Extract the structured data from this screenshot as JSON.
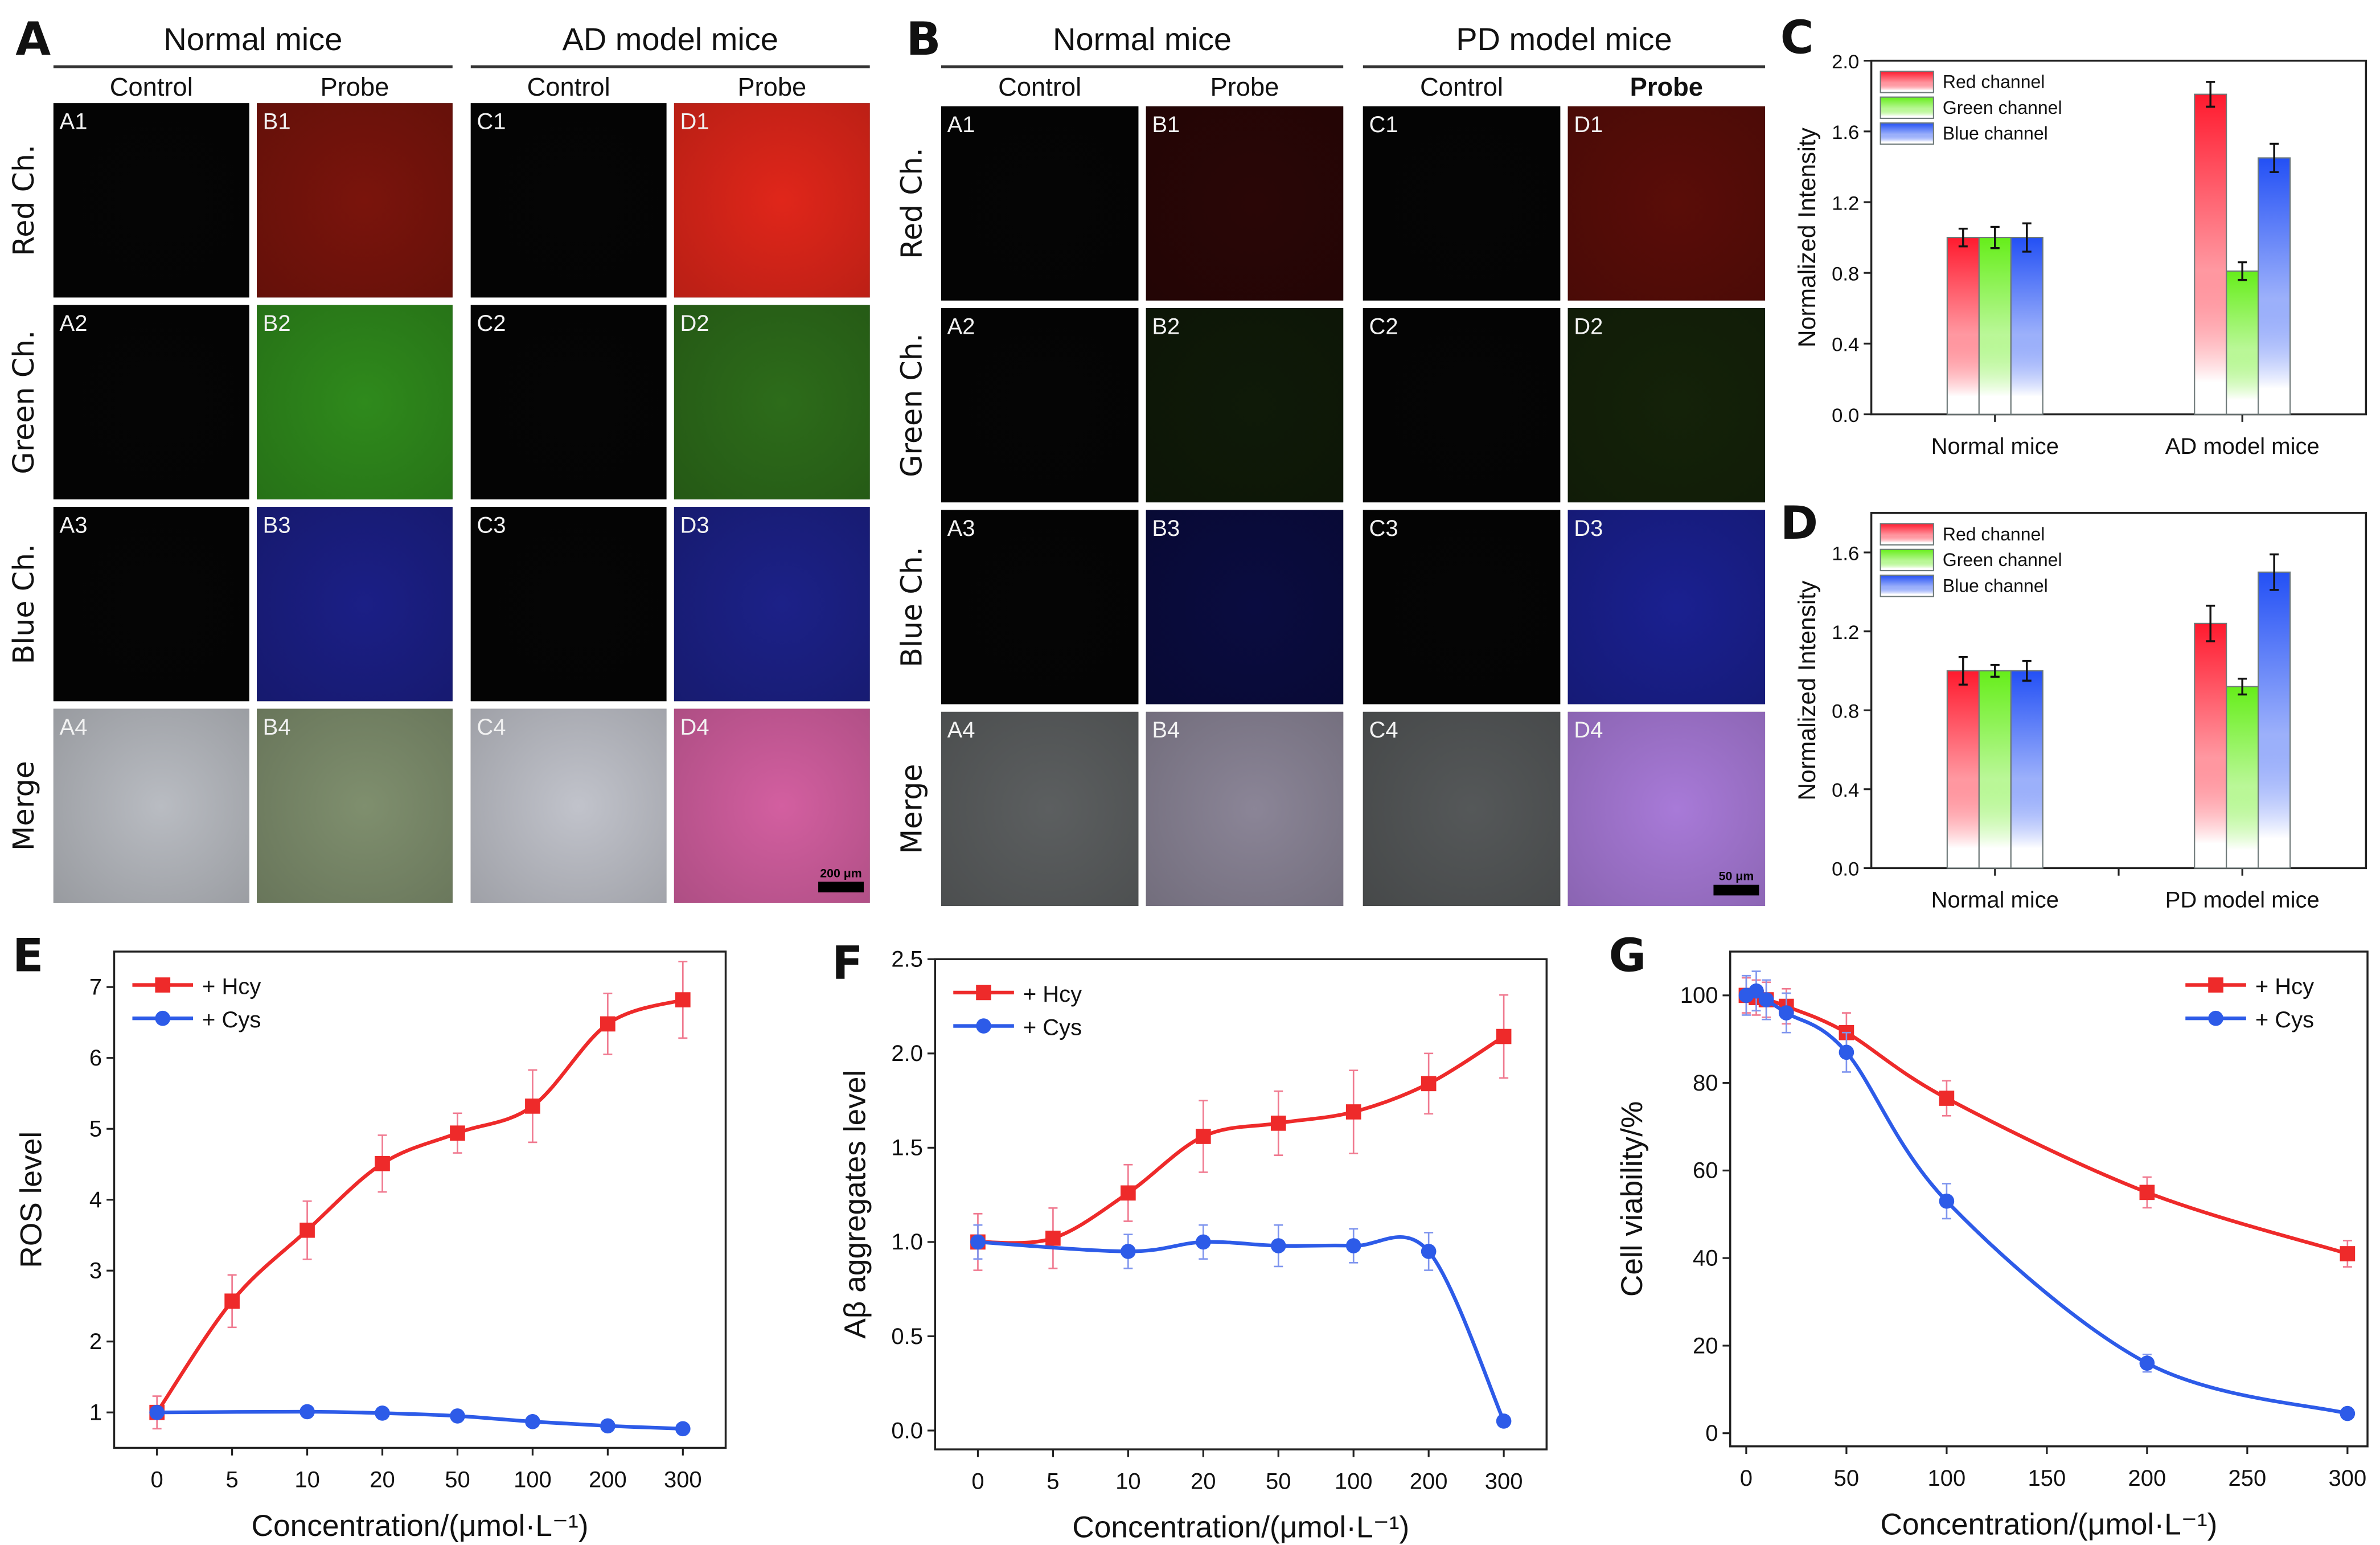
{
  "figure": {
    "panels": {
      "A": {
        "letter": "A",
        "groups": [
          "Normal mice",
          "AD model mice"
        ],
        "columns": [
          "Control",
          "Probe",
          "Control",
          "Probe"
        ],
        "rows": [
          "Red Ch.",
          "Green Ch.",
          "Blue Ch.",
          "Merge"
        ],
        "cell_ids": [
          [
            "A1",
            "B1",
            "C1",
            "D1"
          ],
          [
            "A2",
            "B2",
            "C2",
            "D2"
          ],
          [
            "A3",
            "B3",
            "C3",
            "D3"
          ],
          [
            "A4",
            "B4",
            "C4",
            "D4"
          ]
        ],
        "scale_bar": "200 μm",
        "cell_colors": [
          [
            "#050505",
            "#7a140c",
            "#050505",
            "#e0261a"
          ],
          [
            "#050505",
            "#2f8a1c",
            "#050505",
            "#2d6c1a"
          ],
          [
            "#050505",
            "#1b1f86",
            "#050505",
            "#1c2188"
          ],
          [
            "#b9bcc2",
            "#7f8f6e",
            "#c1c3cb",
            "#d35fa0"
          ]
        ]
      },
      "B": {
        "letter": "B",
        "groups": [
          "Normal mice",
          "PD model mice"
        ],
        "columns": [
          "Control",
          "Probe",
          "Control",
          "Probe"
        ],
        "rows": [
          "Red Ch.",
          "Green Ch.",
          "Blue Ch.",
          "Merge"
        ],
        "cell_ids": [
          [
            "A1",
            "B1",
            "C1",
            "D1"
          ],
          [
            "A2",
            "B2",
            "C2",
            "D2"
          ],
          [
            "A3",
            "B3",
            "C3",
            "D3"
          ],
          [
            "A4",
            "B4",
            "C4",
            "D4"
          ]
        ],
        "scale_bar": "50 μm",
        "cell_colors": [
          [
            "#050505",
            "#2a0606",
            "#050505",
            "#5a0d08"
          ],
          [
            "#050505",
            "#0f1a08",
            "#050505",
            "#142209"
          ],
          [
            "#050505",
            "#0a0c40",
            "#050505",
            "#1a2090"
          ],
          [
            "#5c5f60",
            "#8b8597",
            "#555859",
            "#a87ad8"
          ]
        ]
      }
    }
  },
  "chart_data": [
    {
      "id": "C",
      "letter": "C",
      "type": "bar",
      "title": "",
      "categories": [
        "Normal mice",
        "AD model mice"
      ],
      "series": [
        {
          "name": "Red channel",
          "color": "#ff1a2e",
          "values": [
            1.0,
            1.81
          ],
          "errors": [
            0.05,
            0.07
          ]
        },
        {
          "name": "Green channel",
          "color": "#66ee1a",
          "values": [
            1.0,
            0.81
          ],
          "errors": [
            0.06,
            0.05
          ]
        },
        {
          "name": "Blue channel",
          "color": "#2350f5",
          "values": [
            1.0,
            1.45
          ],
          "errors": [
            0.08,
            0.08
          ]
        }
      ],
      "xlabel": "",
      "ylabel": "Normalized Intensity",
      "ylim": [
        0,
        2.0
      ],
      "yticks": [
        0.0,
        0.4,
        0.8,
        1.2,
        1.6,
        2.0
      ],
      "ytick_labels": [
        "0.0",
        "0.4",
        "0.8",
        "1.2",
        "1.6",
        "2.0"
      ],
      "legend": "top-left",
      "grid": false
    },
    {
      "id": "D",
      "letter": "D",
      "type": "bar",
      "title": "",
      "categories": [
        "Normal mice",
        "PD model mice"
      ],
      "series": [
        {
          "name": "Red channel",
          "color": "#ff1a2e",
          "values": [
            1.0,
            1.24
          ],
          "errors": [
            0.07,
            0.09
          ]
        },
        {
          "name": "Green channel",
          "color": "#66ee1a",
          "values": [
            1.0,
            0.92
          ],
          "errors": [
            0.03,
            0.04
          ]
        },
        {
          "name": "Blue channel",
          "color": "#2350f5",
          "values": [
            1.0,
            1.5
          ],
          "errors": [
            0.05,
            0.09
          ]
        }
      ],
      "xlabel": "",
      "ylabel": "Normalized Intensity",
      "ylim": [
        0,
        1.8
      ],
      "yticks": [
        0.0,
        0.4,
        0.8,
        1.2,
        1.6
      ],
      "ytick_labels": [
        "0.0",
        "0.4",
        "0.8",
        "1.2",
        "1.6"
      ],
      "legend": "top-left",
      "grid": false
    },
    {
      "id": "E",
      "letter": "E",
      "type": "line",
      "title": "",
      "x": [
        "0",
        "5",
        "10",
        "20",
        "50",
        "100",
        "200",
        "300"
      ],
      "x_is_categorical": true,
      "series": [
        {
          "name": "+ Hcy",
          "color": "#ee2a2a",
          "marker": "square",
          "values": [
            1.0,
            2.57,
            3.57,
            4.51,
            4.94,
            5.32,
            6.48,
            6.82
          ],
          "errors": [
            0.23,
            0.37,
            0.41,
            0.4,
            0.28,
            0.51,
            0.43,
            0.54
          ]
        },
        {
          "name": "+ Cys",
          "color": "#2d5be8",
          "marker": "circle",
          "values": [
            1.0,
            null,
            1.01,
            0.99,
            0.95,
            0.87,
            0.81,
            0.77
          ],
          "errors": [
            0.0,
            null,
            0.0,
            0.0,
            0.0,
            0.0,
            0.0,
            0.0
          ]
        }
      ],
      "xlabel": "Concentration/(μmol·L⁻¹)",
      "ylabel": "ROS level",
      "ylim": [
        0.5,
        7.5
      ],
      "yticks": [
        1,
        2,
        3,
        4,
        5,
        6,
        7
      ],
      "ytick_labels": [
        "1",
        "2",
        "3",
        "4",
        "5",
        "6",
        "7"
      ],
      "legend": "top-left",
      "grid": false
    },
    {
      "id": "F",
      "letter": "F",
      "type": "line",
      "title": "",
      "x": [
        "0",
        "5",
        "10",
        "20",
        "50",
        "100",
        "200",
        "300"
      ],
      "x_is_categorical": true,
      "series": [
        {
          "name": "+ Hcy",
          "color": "#ee2a2a",
          "marker": "square",
          "values": [
            1.0,
            1.02,
            1.26,
            1.56,
            1.63,
            1.69,
            1.84,
            2.09
          ],
          "errors": [
            0.15,
            0.16,
            0.15,
            0.19,
            0.17,
            0.22,
            0.16,
            0.22
          ]
        },
        {
          "name": "+ Cys",
          "color": "#2d5be8",
          "marker": "circle",
          "values": [
            1.0,
            null,
            0.95,
            1.0,
            0.98,
            0.98,
            0.95,
            0.05
          ],
          "errors": [
            0.09,
            null,
            0.09,
            0.09,
            0.11,
            0.09,
            0.1,
            0.0
          ]
        }
      ],
      "xlabel": "Concentration/(μmol·L⁻¹)",
      "ylabel": "Aβ aggregates level",
      "ylim": [
        -0.1,
        2.5
      ],
      "yticks": [
        0.0,
        0.5,
        1.0,
        1.5,
        2.0,
        2.5
      ],
      "ytick_labels": [
        "0.0",
        "0.5",
        "1.0",
        "1.5",
        "2.0",
        "2.5"
      ],
      "legend": "top-left",
      "grid": false
    },
    {
      "id": "G",
      "letter": "G",
      "type": "line",
      "title": "",
      "x": [
        0,
        5,
        10,
        20,
        50,
        100,
        200,
        300
      ],
      "x_is_categorical": false,
      "series": [
        {
          "name": "+ Hcy",
          "color": "#ee2a2a",
          "marker": "square",
          "values": [
            100,
            99.5,
            99,
            97.5,
            91.5,
            76.5,
            55,
            41
          ],
          "errors": [
            4,
            4,
            4,
            4,
            4.5,
            4,
            3.5,
            3
          ]
        },
        {
          "name": "+ Cys",
          "color": "#2d5be8",
          "marker": "circle",
          "values": [
            100,
            101,
            99,
            96,
            87,
            53,
            16,
            4.5
          ],
          "errors": [
            4.5,
            4.5,
            4.5,
            4.5,
            4.5,
            4,
            2,
            0
          ]
        }
      ],
      "xlabel": "Concentration/(μmol·L⁻¹)",
      "ylabel": "Cell viability/%",
      "xlim": [
        -8,
        310
      ],
      "xticks": [
        0,
        50,
        100,
        150,
        200,
        250,
        300
      ],
      "xtick_labels": [
        "0",
        "50",
        "100",
        "150",
        "200",
        "250",
        "300"
      ],
      "ylim": [
        -3,
        110
      ],
      "yticks": [
        0,
        20,
        40,
        60,
        80,
        100
      ],
      "ytick_labels": [
        "0",
        "20",
        "40",
        "60",
        "80",
        "100"
      ],
      "legend": "top-right",
      "grid": false
    }
  ]
}
